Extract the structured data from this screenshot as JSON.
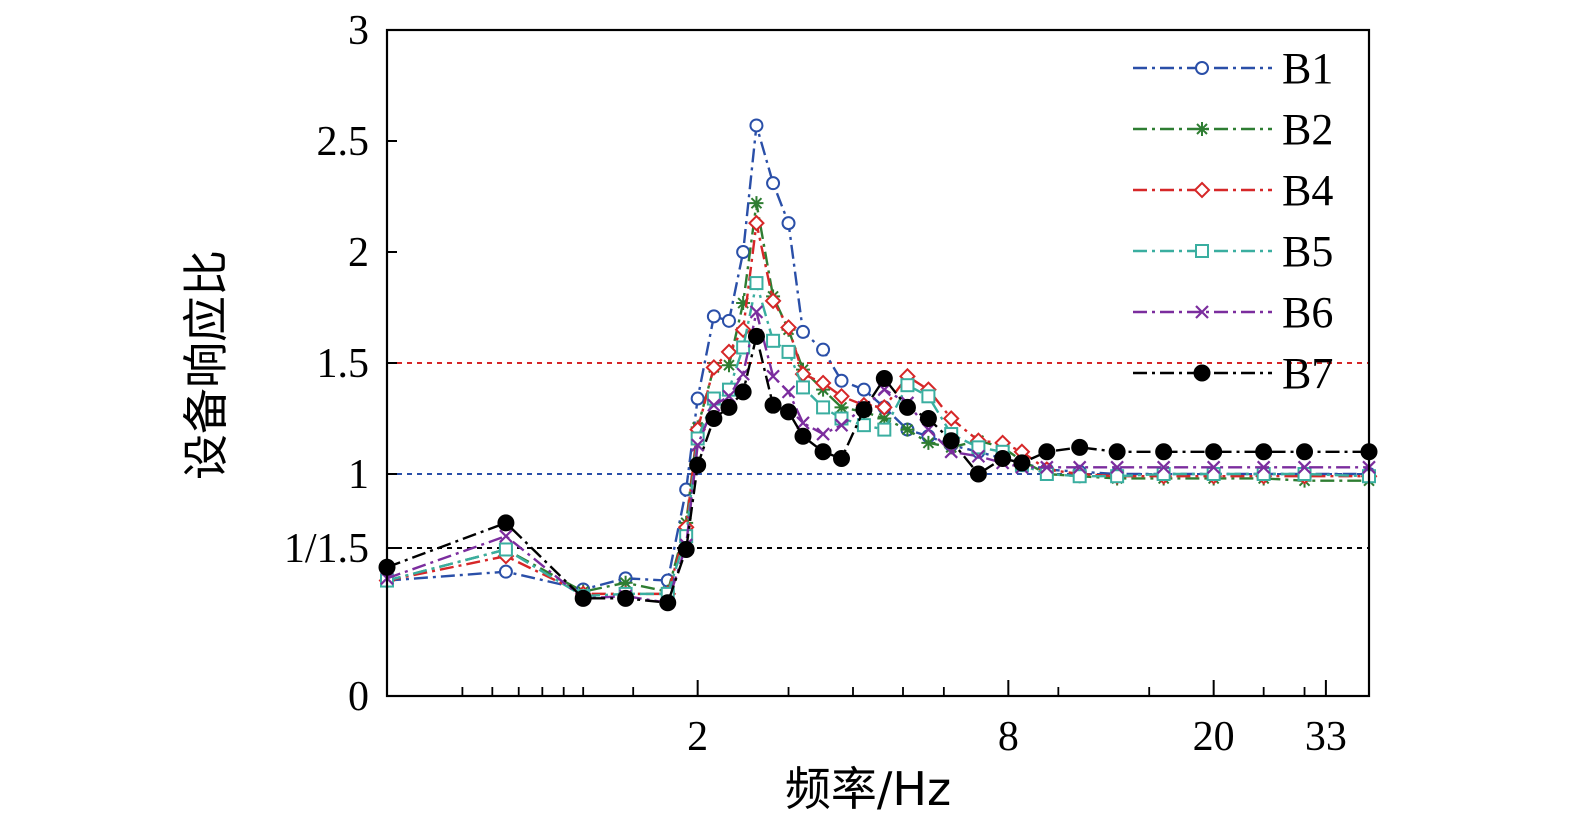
{
  "chart_data": {
    "type": "line",
    "xlabel": "频率/Hz",
    "ylabel": "设备响应比",
    "x_scale": "log",
    "xlim": [
      0.5,
      40
    ],
    "ylim": [
      0,
      3
    ],
    "x_tick_labels": [
      "2",
      "8",
      "20",
      "33"
    ],
    "x_tick_values": [
      2,
      8,
      20,
      33
    ],
    "y_ticks": [
      {
        "value": 0,
        "label": "0"
      },
      {
        "value": 0.6667,
        "label": "1/1.5"
      },
      {
        "value": 1,
        "label": "1"
      },
      {
        "value": 1.5,
        "label": "1.5"
      },
      {
        "value": 2,
        "label": "2"
      },
      {
        "value": 2.5,
        "label": "2.5"
      },
      {
        "value": 3,
        "label": "3"
      }
    ],
    "reference_lines": [
      {
        "y": 1.5,
        "color": "#d62728"
      },
      {
        "y": 1,
        "color": "#2a4fa8"
      },
      {
        "y": 0.6667,
        "color": "#000000"
      }
    ],
    "legend_position": "top-right",
    "grid": false,
    "series": [
      {
        "name": "B1",
        "color": "#2a4fa8",
        "marker": "circle-open",
        "x": [
          0.5,
          0.85,
          1.2,
          1.45,
          1.75,
          1.9,
          2.0,
          2.15,
          2.3,
          2.45,
          2.6,
          2.8,
          3.0,
          3.2,
          3.5,
          3.8,
          4.2,
          4.6,
          5.1,
          5.6,
          6.2,
          7.0,
          7.8,
          8.5,
          9.5,
          11,
          13,
          16,
          20,
          25,
          30,
          40
        ],
        "y": [
          0.52,
          0.56,
          0.48,
          0.53,
          0.52,
          0.93,
          1.34,
          1.71,
          1.69,
          2.0,
          2.57,
          2.31,
          2.13,
          1.64,
          1.56,
          1.42,
          1.38,
          1.3,
          1.2,
          1.17,
          1.13,
          1.1,
          1.07,
          1.05,
          1.02,
          1.01,
          1.0,
          1.0,
          1.0,
          1.0,
          1.0,
          1.0
        ]
      },
      {
        "name": "B2",
        "color": "#2e7d32",
        "marker": "asterisk",
        "x": [
          0.5,
          0.85,
          1.2,
          1.45,
          1.75,
          1.9,
          2.0,
          2.15,
          2.3,
          2.45,
          2.6,
          2.8,
          3.0,
          3.2,
          3.5,
          3.8,
          4.2,
          4.6,
          5.1,
          5.6,
          6.2,
          7.0,
          7.8,
          8.5,
          9.5,
          11,
          13,
          16,
          20,
          25,
          30,
          40
        ],
        "y": [
          0.52,
          0.66,
          0.47,
          0.51,
          0.47,
          0.78,
          1.21,
          1.48,
          1.49,
          1.77,
          2.22,
          1.8,
          1.65,
          1.47,
          1.38,
          1.3,
          1.28,
          1.25,
          1.2,
          1.14,
          1.12,
          1.15,
          1.12,
          1.06,
          1.0,
          0.99,
          0.98,
          0.98,
          0.98,
          0.98,
          0.97,
          0.97
        ]
      },
      {
        "name": "B4",
        "color": "#d62728",
        "marker": "diamond-open",
        "x": [
          0.5,
          0.85,
          1.2,
          1.45,
          1.75,
          1.9,
          2.0,
          2.15,
          2.3,
          2.45,
          2.6,
          2.8,
          3.0,
          3.2,
          3.5,
          3.8,
          4.2,
          4.6,
          5.1,
          5.6,
          6.2,
          7.0,
          7.8,
          8.5,
          9.5,
          11,
          13,
          16,
          20,
          25,
          30,
          40
        ],
        "y": [
          0.52,
          0.63,
          0.46,
          0.46,
          0.46,
          0.76,
          1.2,
          1.48,
          1.55,
          1.65,
          2.13,
          1.78,
          1.66,
          1.45,
          1.41,
          1.35,
          1.31,
          1.3,
          1.44,
          1.38,
          1.25,
          1.15,
          1.14,
          1.1,
          1.02,
          1.0,
          0.99,
          0.99,
          0.99,
          0.99,
          0.99,
          0.99
        ]
      },
      {
        "name": "B5",
        "color": "#3aaea0",
        "marker": "square-open",
        "x": [
          0.5,
          0.85,
          1.2,
          1.45,
          1.75,
          1.9,
          2.0,
          2.15,
          2.3,
          2.45,
          2.6,
          2.8,
          3.0,
          3.2,
          3.5,
          3.8,
          4.2,
          4.6,
          5.1,
          5.6,
          6.2,
          7.0,
          7.8,
          8.5,
          9.5,
          11,
          13,
          16,
          20,
          25,
          30,
          40
        ],
        "y": [
          0.52,
          0.66,
          0.45,
          0.46,
          0.46,
          0.72,
          1.16,
          1.34,
          1.38,
          1.57,
          1.86,
          1.6,
          1.55,
          1.39,
          1.3,
          1.25,
          1.22,
          1.2,
          1.4,
          1.35,
          1.18,
          1.12,
          1.1,
          1.04,
          1.0,
          0.99,
          0.99,
          1.0,
          1.0,
          1.0,
          1.0,
          0.99
        ]
      },
      {
        "name": "B6",
        "color": "#7b2d9e",
        "marker": "x",
        "x": [
          0.5,
          0.85,
          1.2,
          1.45,
          1.75,
          1.9,
          2.0,
          2.15,
          2.3,
          2.45,
          2.6,
          2.8,
          3.0,
          3.2,
          3.5,
          3.8,
          4.2,
          4.6,
          5.1,
          5.6,
          6.2,
          7.0,
          7.8,
          8.5,
          9.5,
          11,
          13,
          16,
          20,
          25,
          30,
          40
        ],
        "y": [
          0.53,
          0.72,
          0.44,
          0.45,
          0.42,
          0.68,
          1.13,
          1.31,
          1.35,
          1.45,
          1.73,
          1.44,
          1.37,
          1.23,
          1.18,
          1.22,
          1.3,
          1.38,
          1.32,
          1.2,
          1.1,
          1.08,
          1.05,
          1.03,
          1.03,
          1.03,
          1.03,
          1.03,
          1.03,
          1.03,
          1.03,
          1.03
        ]
      },
      {
        "name": "B7",
        "color": "#000000",
        "marker": "circle-filled",
        "x": [
          0.5,
          0.85,
          1.2,
          1.45,
          1.75,
          1.9,
          2.0,
          2.15,
          2.3,
          2.45,
          2.6,
          2.8,
          3.0,
          3.2,
          3.5,
          3.8,
          4.2,
          4.6,
          5.1,
          5.6,
          6.2,
          7.0,
          7.8,
          8.5,
          9.5,
          11,
          13,
          16,
          20,
          25,
          30,
          40
        ],
        "y": [
          0.58,
          0.78,
          0.44,
          0.44,
          0.42,
          0.66,
          1.04,
          1.25,
          1.3,
          1.37,
          1.62,
          1.31,
          1.28,
          1.17,
          1.1,
          1.07,
          1.29,
          1.43,
          1.3,
          1.25,
          1.15,
          1.0,
          1.07,
          1.05,
          1.1,
          1.12,
          1.1,
          1.1,
          1.1,
          1.1,
          1.1,
          1.1
        ]
      }
    ]
  }
}
